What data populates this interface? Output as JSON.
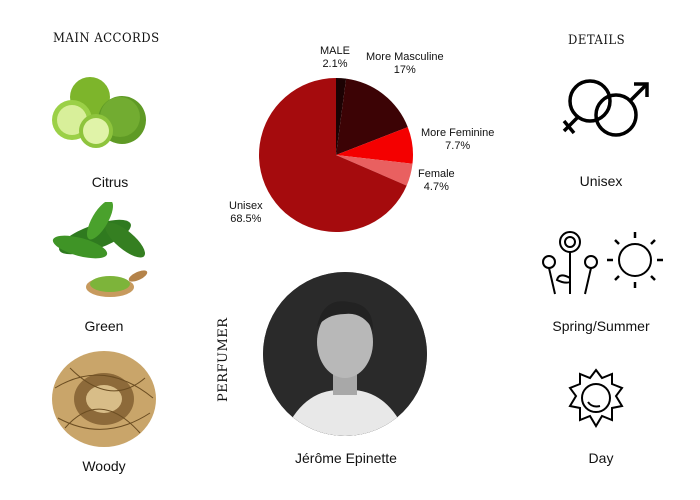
{
  "left": {
    "heading": "MAIN ACCORDS",
    "accords": [
      {
        "label": "Citrus",
        "icon": "citrus-fruit-image"
      },
      {
        "label": "Green",
        "icon": "green-tea-leaves-image"
      },
      {
        "label": "Woody",
        "icon": "woody-twigs-image"
      }
    ]
  },
  "right": {
    "heading": "DETAILS",
    "items": [
      {
        "label": "Unisex",
        "icon": "gender-symbols-icon"
      },
      {
        "label": "Spring/Summer",
        "icon": "flowers-sun-icon"
      },
      {
        "label": "Day",
        "icon": "sun-icon"
      }
    ]
  },
  "perfumer": {
    "heading": "PERFUMER",
    "name": "Jérôme Epinette"
  },
  "chart_data": {
    "type": "pie",
    "start": "top, clockwise",
    "slices": [
      {
        "label": "MALE",
        "value": 2.1,
        "display": "2.1%",
        "color": "#1c0203"
      },
      {
        "label": "More Masculine",
        "value": 17,
        "display": "17%",
        "color": "#3c0305"
      },
      {
        "label": "More Feminine",
        "value": 7.7,
        "display": "7.7%",
        "color": "#f40000"
      },
      {
        "label": "Female",
        "value": 4.7,
        "display": "4.7%",
        "color": "#e96060"
      },
      {
        "label": "Unisex",
        "value": 68.5,
        "display": "68.5%",
        "color": "#a50b0d"
      }
    ]
  }
}
